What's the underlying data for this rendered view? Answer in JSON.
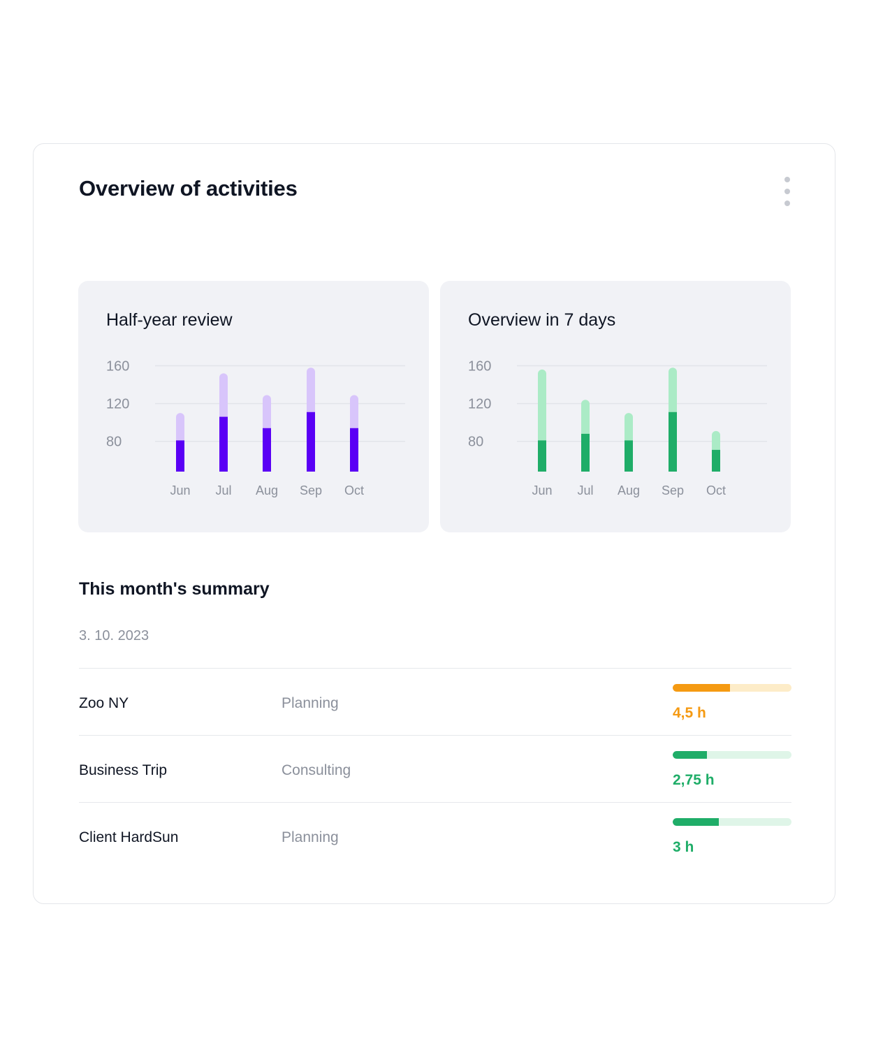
{
  "card": {
    "title": "Overview of activities",
    "menu_icon": "more-vertical-icon"
  },
  "colors": {
    "purple_dark": "#5a00f5",
    "purple_light": "#d8c5fb",
    "green_dark": "#1fad68",
    "green_light": "#abebc6",
    "orange": "#f59a12",
    "orange_light": "#fdecc8",
    "green_track": "#dff5e8"
  },
  "chart_data": [
    {
      "type": "bar",
      "title": "Half-year review",
      "categories": [
        "Jun",
        "Jul",
        "Aug",
        "Sep",
        "Oct"
      ],
      "y_ticks": [
        "160",
        "120",
        "80"
      ],
      "ylim": [
        48,
        170
      ],
      "grid": true,
      "series": [
        {
          "values": [
            81,
            106,
            94,
            111,
            94
          ]
        },
        {
          "values": [
            110,
            152,
            129,
            158,
            129
          ]
        }
      ]
    },
    {
      "type": "bar",
      "title": "Overview in 7 days",
      "categories": [
        "Jun",
        "Jul",
        "Aug",
        "Sep",
        "Oct"
      ],
      "y_ticks": [
        "160",
        "120",
        "80"
      ],
      "ylim": [
        48,
        170
      ],
      "grid": true,
      "series": [
        {
          "values": [
            81,
            88,
            81,
            111,
            71
          ]
        },
        {
          "values": [
            156,
            124,
            110,
            158,
            91
          ]
        }
      ]
    }
  ],
  "summary": {
    "title": "This month's summary",
    "date": "3. 10. 2023",
    "rows": [
      {
        "name": "Zoo NY",
        "category": "Planning",
        "hours": "4,5 h",
        "progress": 0.48,
        "color": "#f59a12",
        "track": "#fdecc8"
      },
      {
        "name": "Business Trip",
        "category": "Consulting",
        "hours": "2,75 h",
        "progress": 0.29,
        "color": "#1fad68",
        "track": "#dff5e8"
      },
      {
        "name": "Client HardSun",
        "category": "Planning",
        "hours": "3 h",
        "progress": 0.39,
        "color": "#1fad68",
        "track": "#dff5e8"
      }
    ]
  }
}
